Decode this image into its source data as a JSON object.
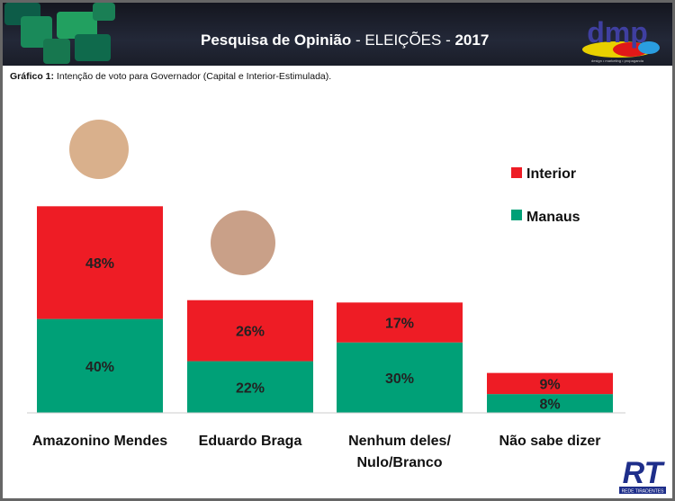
{
  "header": {
    "title_bold": "Pesquisa de Opinião",
    "title_rest": " - ELEIÇÕES - ",
    "year": "2017",
    "logo_text": "dmp",
    "logo_tagline": "design • marketing • propaganda"
  },
  "subtitle": {
    "label": "Gráfico 1:",
    "text": " Intenção de voto para Governador (Capital e Interior-Estimulada)."
  },
  "footer_logo": {
    "text": "RT",
    "tagline": "REDE TIRADENTES"
  },
  "colors": {
    "Interior": "#ee1c25",
    "Manaus": "#00a077"
  },
  "chart_data": {
    "type": "bar",
    "stacked": true,
    "categories": [
      "Amazonino Mendes",
      "Eduardo Braga",
      "Nenhum deles/ Nulo/Branco",
      "Não sabe dizer"
    ],
    "series": [
      {
        "name": "Manaus",
        "values": [
          40,
          22,
          30,
          8
        ],
        "labels": [
          "40%",
          "22%",
          "30%",
          "8%"
        ]
      },
      {
        "name": "Interior",
        "values": [
          48,
          26,
          17,
          9
        ],
        "labels": [
          "48%",
          "26%",
          "17%",
          "9%"
        ]
      }
    ],
    "legend": "top-right",
    "grid": false,
    "unit": "%"
  }
}
